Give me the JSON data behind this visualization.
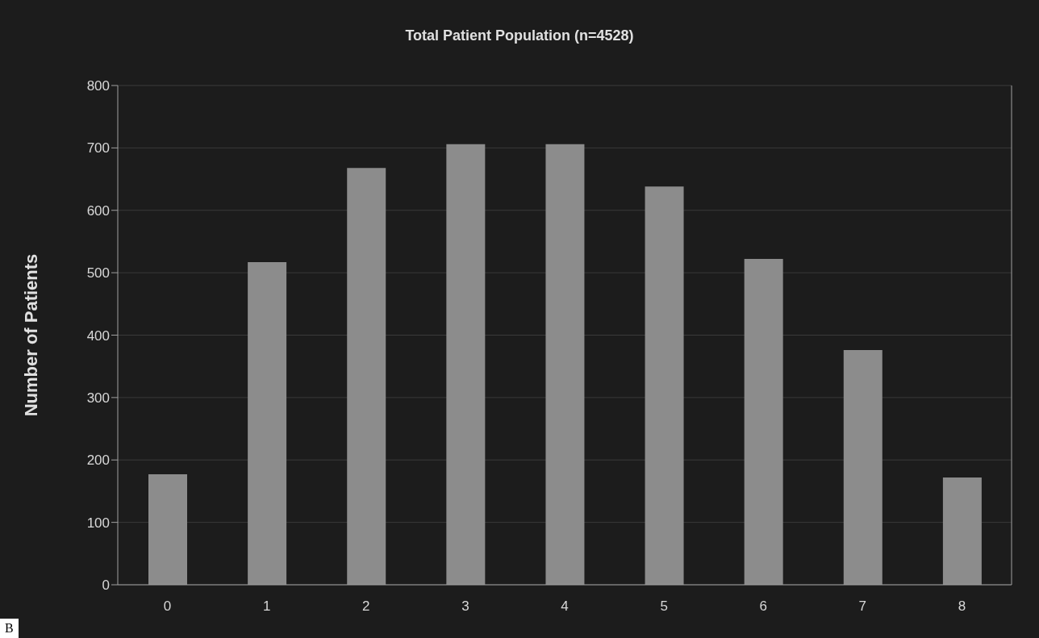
{
  "chart_data": {
    "type": "bar",
    "title": "Total Patient Population (n=4528)",
    "ylabel": "Number of Patients",
    "categories": [
      "0",
      "1",
      "2",
      "3",
      "4",
      "5",
      "6",
      "7",
      "8"
    ],
    "values": [
      177,
      517,
      668,
      706,
      706,
      638,
      522,
      376,
      172
    ],
    "color": "#8c8c8c",
    "ylim": [
      0,
      800
    ],
    "yticks": [
      0,
      100,
      200,
      300,
      400,
      500,
      600,
      700,
      800
    ],
    "grid": "y",
    "annotations": [
      "B"
    ]
  }
}
